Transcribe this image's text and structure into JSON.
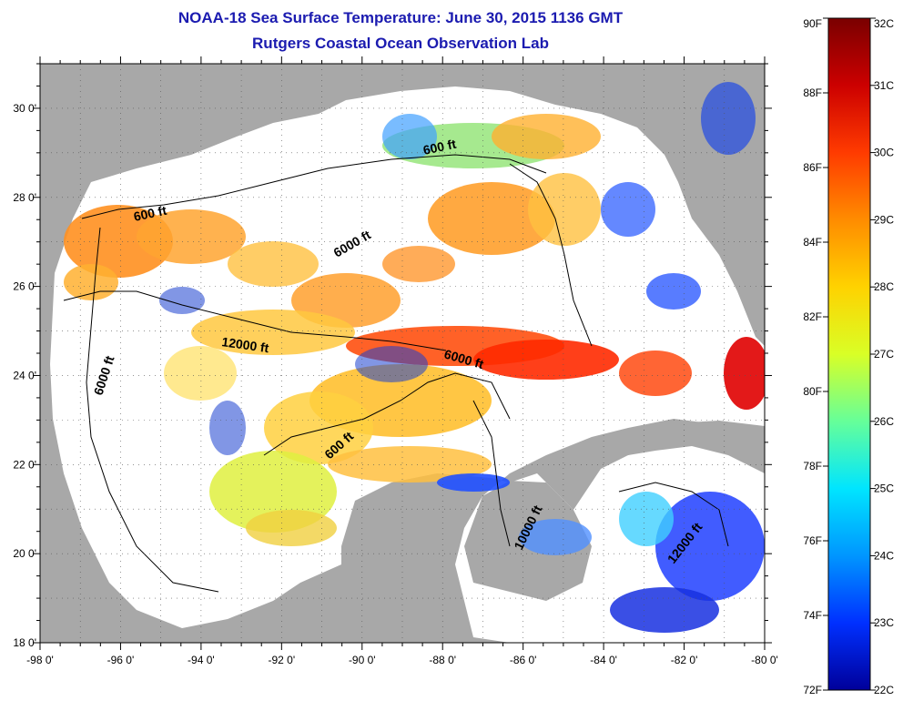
{
  "title": {
    "line1": "NOAA-18 Sea Surface Temperature:  June 30, 2015 1136 GMT",
    "line2": "Rutgers Coastal Ocean Observation Lab"
  },
  "axes": {
    "x_ticks": [
      "-98 0'",
      "-96 0'",
      "-94 0'",
      "-92 0'",
      "-90 0'",
      "-88 0'",
      "-86 0'",
      "-84 0'",
      "-82 0'",
      "-80 0'"
    ],
    "y_ticks": [
      "30 0'",
      "28 0'",
      "26 0'",
      "24 0'",
      "22 0'",
      "20 0'",
      "18 0'"
    ],
    "lon_range": [
      -98,
      -80
    ],
    "lat_range": [
      18,
      31
    ]
  },
  "contour_labels": [
    "600 ft",
    "600 ft",
    "6000 ft",
    "12000 ft",
    "6000 ft",
    "6000 ft",
    "600 ft",
    "10000 ft",
    "12000 ft"
  ],
  "colorbar": {
    "fahrenheit": [
      "90F",
      "88F",
      "86F",
      "84F",
      "82F",
      "80F",
      "78F",
      "76F",
      "74F",
      "72F"
    ],
    "celsius": [
      "32C",
      "31C",
      "30C",
      "29C",
      "28C",
      "27C",
      "26C",
      "25C",
      "24C",
      "23C",
      "22C"
    ],
    "gradient_colors": [
      "#7a0000",
      "#cc0000",
      "#ff3b00",
      "#ff8c00",
      "#ffd200",
      "#d9ff26",
      "#66ff99",
      "#00e5ff",
      "#0096ff",
      "#0030ff",
      "#00009a"
    ]
  },
  "colors": {
    "land": "#a8a8a8",
    "no_data": "#ffffff",
    "title": "#1b1bb0"
  }
}
